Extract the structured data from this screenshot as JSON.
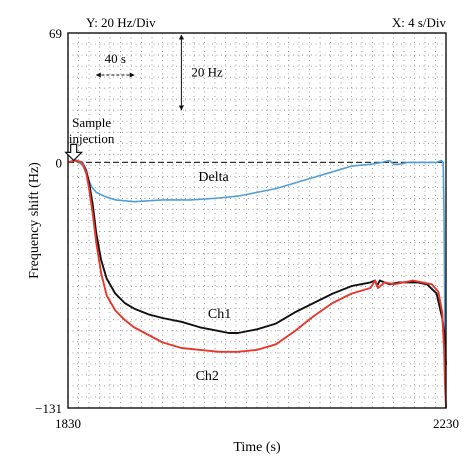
{
  "chart_data": {
    "type": "line",
    "xlabel": "Time (s)",
    "ylabel": "Frequency shift (Hz)",
    "xlim": [
      1830,
      2230
    ],
    "ylim": [
      -131,
      69
    ],
    "x_tick_labels": [
      "1830",
      "2230"
    ],
    "y_tick_labels": [
      "69",
      "0",
      "−131"
    ],
    "grid": "dotted",
    "scale_notes": {
      "y_div": "Y: 20 Hz/Div",
      "x_div": "X: 4 s/Div",
      "time_bar": "40 s",
      "freq_bar": "20 Hz"
    },
    "annotations": {
      "injection": [
        "Sample",
        "injection"
      ]
    },
    "baseline_y": 0,
    "series": [
      {
        "name": "Delta",
        "color": "#4f9fd6",
        "label_at": [
          1968,
          -10
        ],
        "points": [
          [
            1830,
            0
          ],
          [
            1836,
            1
          ],
          [
            1842,
            0
          ],
          [
            1846,
            -2
          ],
          [
            1850,
            -7
          ],
          [
            1855,
            -13
          ],
          [
            1860,
            -16
          ],
          [
            1868,
            -18
          ],
          [
            1880,
            -20
          ],
          [
            1900,
            -21
          ],
          [
            1930,
            -20
          ],
          [
            1960,
            -20
          ],
          [
            1990,
            -19
          ],
          [
            2010,
            -18
          ],
          [
            2030,
            -16
          ],
          [
            2050,
            -14
          ],
          [
            2070,
            -11
          ],
          [
            2090,
            -8
          ],
          [
            2110,
            -5
          ],
          [
            2130,
            -2
          ],
          [
            2150,
            -1
          ],
          [
            2162,
            0
          ],
          [
            2170,
            1
          ],
          [
            2175,
            -1
          ],
          [
            2180,
            -1
          ],
          [
            2190,
            0
          ],
          [
            2200,
            0
          ],
          [
            2210,
            0
          ],
          [
            2220,
            0
          ],
          [
            2225,
            1
          ],
          [
            2227,
            0
          ],
          [
            2228,
            -30
          ],
          [
            2229,
            -110
          ],
          [
            2230,
            -131
          ]
        ]
      },
      {
        "name": "Ch1",
        "color": "#111111",
        "label_at": [
          1978,
          -83
        ],
        "points": [
          [
            1830,
            0
          ],
          [
            1838,
            1
          ],
          [
            1845,
            0
          ],
          [
            1849,
            -4
          ],
          [
            1852,
            -10
          ],
          [
            1856,
            -22
          ],
          [
            1860,
            -38
          ],
          [
            1865,
            -52
          ],
          [
            1871,
            -62
          ],
          [
            1880,
            -70
          ],
          [
            1890,
            -75
          ],
          [
            1900,
            -78
          ],
          [
            1915,
            -81
          ],
          [
            1930,
            -83
          ],
          [
            1950,
            -85
          ],
          [
            1970,
            -88
          ],
          [
            1990,
            -90
          ],
          [
            2000,
            -91
          ],
          [
            2010,
            -91
          ],
          [
            2030,
            -89
          ],
          [
            2050,
            -86
          ],
          [
            2070,
            -80
          ],
          [
            2090,
            -75
          ],
          [
            2110,
            -70
          ],
          [
            2130,
            -66
          ],
          [
            2150,
            -64
          ],
          [
            2155,
            -63
          ],
          [
            2157,
            -66
          ],
          [
            2160,
            -63
          ],
          [
            2170,
            -65
          ],
          [
            2180,
            -64
          ],
          [
            2190,
            -64
          ],
          [
            2200,
            -64
          ],
          [
            2210,
            -65
          ],
          [
            2220,
            -70
          ],
          [
            2226,
            -83
          ],
          [
            2228,
            -90
          ],
          [
            2229,
            -100
          ],
          [
            2230,
            -108
          ]
        ]
      },
      {
        "name": "Ch2",
        "color": "#e8372d",
        "label_at": [
          1965,
          -116
        ],
        "points": [
          [
            1830,
            0
          ],
          [
            1838,
            1
          ],
          [
            1845,
            0
          ],
          [
            1849,
            -5
          ],
          [
            1852,
            -13
          ],
          [
            1856,
            -27
          ],
          [
            1860,
            -43
          ],
          [
            1865,
            -59
          ],
          [
            1871,
            -71
          ],
          [
            1880,
            -79
          ],
          [
            1890,
            -84
          ],
          [
            1900,
            -88
          ],
          [
            1915,
            -92
          ],
          [
            1930,
            -96
          ],
          [
            1950,
            -99
          ],
          [
            1970,
            -100
          ],
          [
            1990,
            -101
          ],
          [
            2010,
            -101
          ],
          [
            2030,
            -100
          ],
          [
            2050,
            -97
          ],
          [
            2070,
            -90
          ],
          [
            2090,
            -82
          ],
          [
            2110,
            -75
          ],
          [
            2130,
            -70
          ],
          [
            2150,
            -67
          ],
          [
            2155,
            -63
          ],
          [
            2158,
            -67
          ],
          [
            2165,
            -64
          ],
          [
            2175,
            -65
          ],
          [
            2185,
            -64
          ],
          [
            2195,
            -63
          ],
          [
            2205,
            -64
          ],
          [
            2215,
            -65
          ],
          [
            2222,
            -69
          ],
          [
            2226,
            -80
          ],
          [
            2228,
            -100
          ],
          [
            2229,
            -120
          ],
          [
            2230,
            -131
          ]
        ]
      }
    ]
  }
}
